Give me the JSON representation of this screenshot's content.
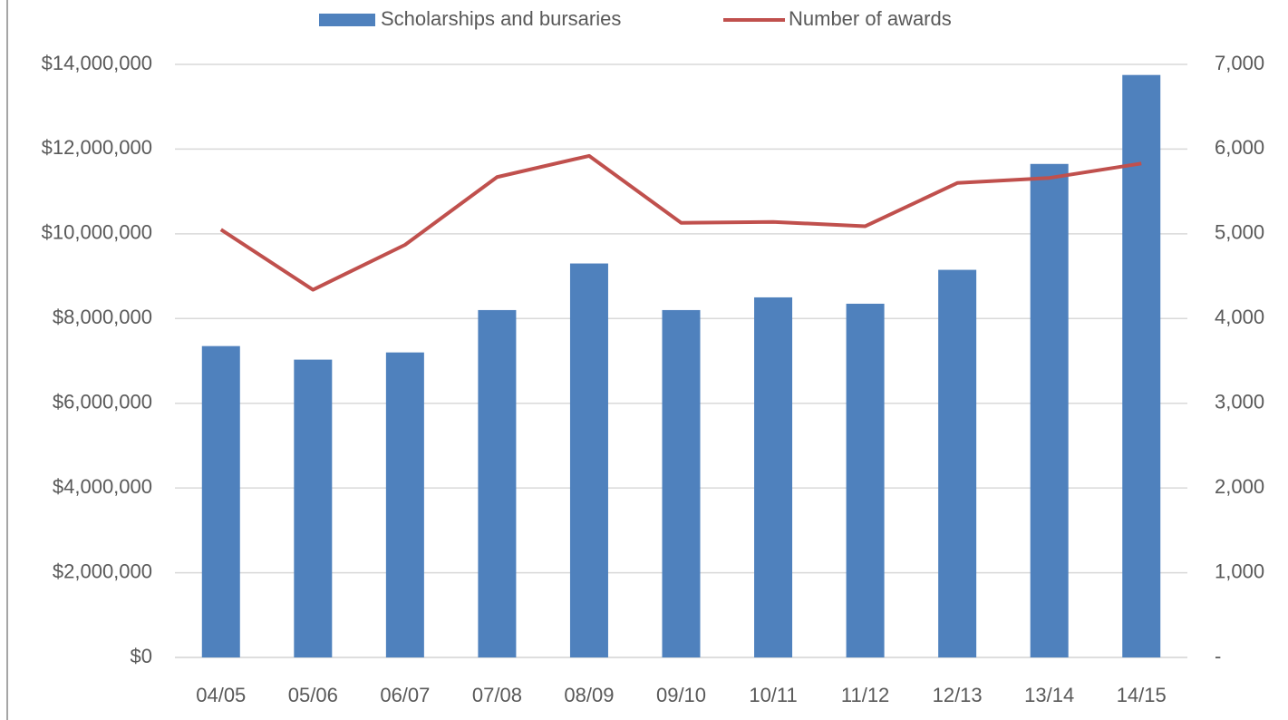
{
  "chart_data": {
    "type": "bar",
    "categories": [
      "04/05",
      "05/06",
      "06/07",
      "07/08",
      "08/09",
      "09/10",
      "10/11",
      "11/12",
      "12/13",
      "13/14",
      "14/15"
    ],
    "series": [
      {
        "name": "Scholarships and bursaries",
        "type": "bar",
        "color": "#4f81bd",
        "values": [
          7350000,
          7030000,
          7200000,
          8200000,
          9300000,
          8200000,
          8500000,
          8350000,
          9150000,
          11650000,
          13750000
        ]
      },
      {
        "name": "Number of awards",
        "type": "line",
        "axis": "y2",
        "color": "#c0504d",
        "values": [
          5050,
          4340,
          4870,
          5670,
          5920,
          5130,
          5140,
          5090,
          5600,
          5660,
          5830
        ]
      }
    ],
    "ylim": [
      0,
      14000000
    ],
    "yticks": [
      {
        "value": 0,
        "label": "$0"
      },
      {
        "value": 2000000,
        "label": "$2,000,000"
      },
      {
        "value": 4000000,
        "label": "$4,000,000"
      },
      {
        "value": 6000000,
        "label": "$6,000,000"
      },
      {
        "value": 8000000,
        "label": "$8,000,000"
      },
      {
        "value": 10000000,
        "label": "$10,000,000"
      },
      {
        "value": 12000000,
        "label": "$12,000,000"
      },
      {
        "value": 14000000,
        "label": "$14,000,000"
      }
    ],
    "y2lim": [
      0,
      7000
    ],
    "y2ticks": [
      {
        "value": 0,
        "label": "-"
      },
      {
        "value": 1000,
        "label": "1,000"
      },
      {
        "value": 2000,
        "label": "2,000"
      },
      {
        "value": 3000,
        "label": "3,000"
      },
      {
        "value": 4000,
        "label": "4,000"
      },
      {
        "value": 5000,
        "label": "5,000"
      },
      {
        "value": 6000,
        "label": "6,000"
      },
      {
        "value": 7000,
        "label": "7,000"
      }
    ],
    "grid": true,
    "legend": "top"
  }
}
